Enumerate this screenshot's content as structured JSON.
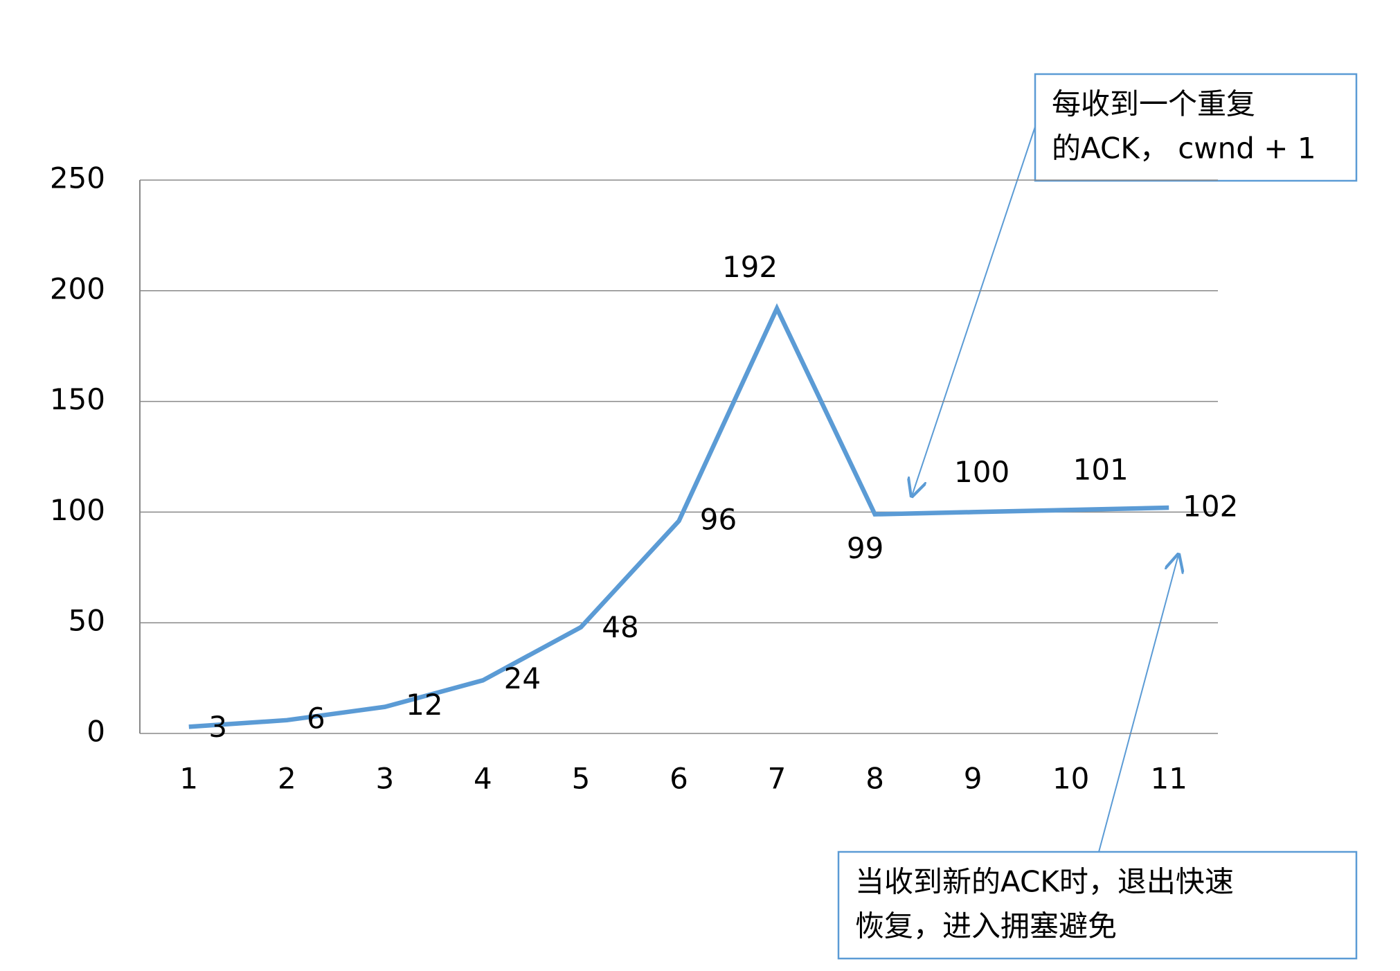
{
  "chart_data": {
    "type": "line",
    "categories": [
      "1",
      "2",
      "3",
      "4",
      "5",
      "6",
      "7",
      "8",
      "9",
      "10",
      "11"
    ],
    "values": [
      3,
      6,
      12,
      24,
      48,
      96,
      192,
      99,
      100,
      101,
      102
    ],
    "color": "#5b9bd5",
    "ylim": [
      0,
      250
    ],
    "yticks": [
      0,
      50,
      100,
      150,
      200,
      250
    ],
    "grid": true,
    "annotations": [
      {
        "lines": [
          "每收到一个重复",
          "的ACK， cwnd + 1"
        ]
      },
      {
        "lines": [
          "当收到新的ACK时，退出快速",
          "恢复，进入拥塞避免"
        ]
      }
    ]
  }
}
